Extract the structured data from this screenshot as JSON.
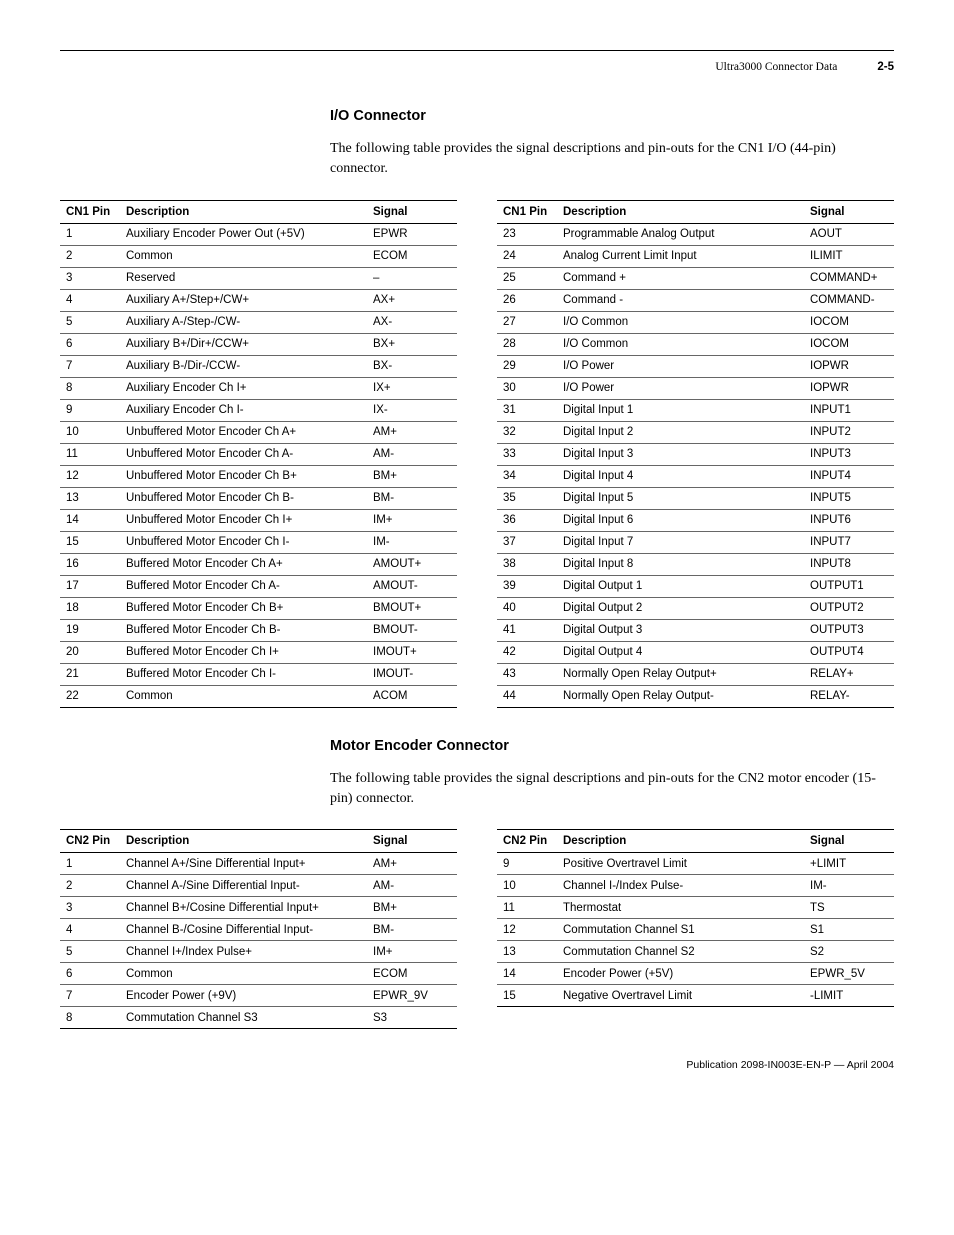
{
  "header": {
    "doc_title": "Ultra3000 Connector Data",
    "page_number": "2-5"
  },
  "section1": {
    "title": "I/O Connector",
    "description": "The following table provides the signal descriptions and pin-outs for the CN1 I/O (44-pin) connector."
  },
  "table1": {
    "headers": {
      "pin": "CN1 Pin",
      "desc": "Description",
      "signal": "Signal"
    },
    "left_rows": [
      {
        "pin": "1",
        "desc": "Auxiliary Encoder Power Out (+5V)",
        "signal": "EPWR"
      },
      {
        "pin": "2",
        "desc": "Common",
        "signal": "ECOM"
      },
      {
        "pin": "3",
        "desc": "Reserved",
        "signal": "–"
      },
      {
        "pin": "4",
        "desc": "Auxiliary A+/Step+/CW+",
        "signal": "AX+"
      },
      {
        "pin": "5",
        "desc": "Auxiliary A-/Step-/CW-",
        "signal": "AX-"
      },
      {
        "pin": "6",
        "desc": "Auxiliary B+/Dir+/CCW+",
        "signal": "BX+"
      },
      {
        "pin": "7",
        "desc": "Auxiliary B-/Dir-/CCW-",
        "signal": "BX-"
      },
      {
        "pin": "8",
        "desc": "Auxiliary Encoder Ch I+",
        "signal": "IX+"
      },
      {
        "pin": "9",
        "desc": "Auxiliary Encoder Ch I-",
        "signal": "IX-"
      },
      {
        "pin": "10",
        "desc": "Unbuffered Motor Encoder Ch A+",
        "signal": "AM+"
      },
      {
        "pin": "11",
        "desc": "Unbuffered Motor Encoder Ch A-",
        "signal": "AM-"
      },
      {
        "pin": "12",
        "desc": "Unbuffered Motor Encoder Ch B+",
        "signal": "BM+"
      },
      {
        "pin": "13",
        "desc": "Unbuffered Motor Encoder Ch B-",
        "signal": "BM-"
      },
      {
        "pin": "14",
        "desc": "Unbuffered Motor Encoder Ch I+",
        "signal": "IM+"
      },
      {
        "pin": "15",
        "desc": "Unbuffered Motor Encoder Ch I-",
        "signal": "IM-"
      },
      {
        "pin": "16",
        "desc": "Buffered Motor Encoder Ch A+",
        "signal": "AMOUT+"
      },
      {
        "pin": "17",
        "desc": "Buffered Motor Encoder Ch A-",
        "signal": "AMOUT-"
      },
      {
        "pin": "18",
        "desc": "Buffered Motor Encoder Ch B+",
        "signal": "BMOUT+"
      },
      {
        "pin": "19",
        "desc": "Buffered Motor Encoder Ch B-",
        "signal": "BMOUT-"
      },
      {
        "pin": "20",
        "desc": "Buffered Motor Encoder Ch I+",
        "signal": "IMOUT+"
      },
      {
        "pin": "21",
        "desc": "Buffered Motor Encoder Ch I-",
        "signal": "IMOUT-"
      },
      {
        "pin": "22",
        "desc": "Common",
        "signal": "ACOM"
      }
    ],
    "right_rows": [
      {
        "pin": "23",
        "desc": "Programmable Analog Output",
        "signal": "AOUT"
      },
      {
        "pin": "24",
        "desc": "Analog Current Limit Input",
        "signal": "ILIMIT"
      },
      {
        "pin": "25",
        "desc": "Command +",
        "signal": "COMMAND+"
      },
      {
        "pin": "26",
        "desc": "Command -",
        "signal": "COMMAND-"
      },
      {
        "pin": "27",
        "desc": "I/O Common",
        "signal": "IOCOM"
      },
      {
        "pin": "28",
        "desc": "I/O Common",
        "signal": "IOCOM"
      },
      {
        "pin": "29",
        "desc": "I/O Power",
        "signal": "IOPWR"
      },
      {
        "pin": "30",
        "desc": "I/O Power",
        "signal": "IOPWR"
      },
      {
        "pin": "31",
        "desc": "Digital Input 1",
        "signal": "INPUT1"
      },
      {
        "pin": "32",
        "desc": "Digital Input 2",
        "signal": "INPUT2"
      },
      {
        "pin": "33",
        "desc": "Digital Input 3",
        "signal": "INPUT3"
      },
      {
        "pin": "34",
        "desc": "Digital Input 4",
        "signal": "INPUT4"
      },
      {
        "pin": "35",
        "desc": "Digital Input 5",
        "signal": "INPUT5"
      },
      {
        "pin": "36",
        "desc": "Digital Input 6",
        "signal": "INPUT6"
      },
      {
        "pin": "37",
        "desc": "Digital Input 7",
        "signal": "INPUT7"
      },
      {
        "pin": "38",
        "desc": "Digital Input 8",
        "signal": "INPUT8"
      },
      {
        "pin": "39",
        "desc": "Digital Output 1",
        "signal": "OUTPUT1"
      },
      {
        "pin": "40",
        "desc": "Digital Output 2",
        "signal": "OUTPUT2"
      },
      {
        "pin": "41",
        "desc": "Digital Output 3",
        "signal": "OUTPUT3"
      },
      {
        "pin": "42",
        "desc": "Digital Output 4",
        "signal": "OUTPUT4"
      },
      {
        "pin": "43",
        "desc": "Normally Open Relay Output+",
        "signal": "RELAY+"
      },
      {
        "pin": "44",
        "desc": "Normally Open Relay Output-",
        "signal": "RELAY-"
      }
    ]
  },
  "section2": {
    "title": "Motor Encoder Connector",
    "description": "The following table provides the signal descriptions and pin-outs for the CN2 motor encoder (15-pin) connector."
  },
  "table2": {
    "headers": {
      "pin": "CN2 Pin",
      "desc": "Description",
      "signal": "Signal"
    },
    "left_rows": [
      {
        "pin": "1",
        "desc": "Channel A+/Sine Differential Input+",
        "signal": "AM+"
      },
      {
        "pin": "2",
        "desc": "Channel A-/Sine Differential Input-",
        "signal": "AM-"
      },
      {
        "pin": "3",
        "desc": "Channel B+/Cosine Differential Input+",
        "signal": "BM+"
      },
      {
        "pin": "4",
        "desc": "Channel B-/Cosine Differential Input-",
        "signal": "BM-"
      },
      {
        "pin": "5",
        "desc": "Channel I+/Index Pulse+",
        "signal": "IM+"
      },
      {
        "pin": "6",
        "desc": "Common",
        "signal": "ECOM"
      },
      {
        "pin": "7",
        "desc": "Encoder Power (+9V)",
        "signal": "EPWR_9V"
      },
      {
        "pin": "8",
        "desc": "Commutation Channel S3",
        "signal": "S3"
      }
    ],
    "right_rows": [
      {
        "pin": "9",
        "desc": "Positive Overtravel Limit",
        "signal": "+LIMIT"
      },
      {
        "pin": "10",
        "desc": "Channel I-/Index Pulse-",
        "signal": "IM-"
      },
      {
        "pin": "11",
        "desc": "Thermostat",
        "signal": "TS"
      },
      {
        "pin": "12",
        "desc": "Commutation Channel S1",
        "signal": "S1"
      },
      {
        "pin": "13",
        "desc": "Commutation Channel S2",
        "signal": "S2"
      },
      {
        "pin": "14",
        "desc": "Encoder Power (+5V)",
        "signal": "EPWR_5V"
      },
      {
        "pin": "15",
        "desc": "Negative Overtravel Limit",
        "signal": "-LIMIT"
      }
    ]
  },
  "footer": {
    "publication": "Publication 2098-IN003E-EN-P — April 2004"
  }
}
